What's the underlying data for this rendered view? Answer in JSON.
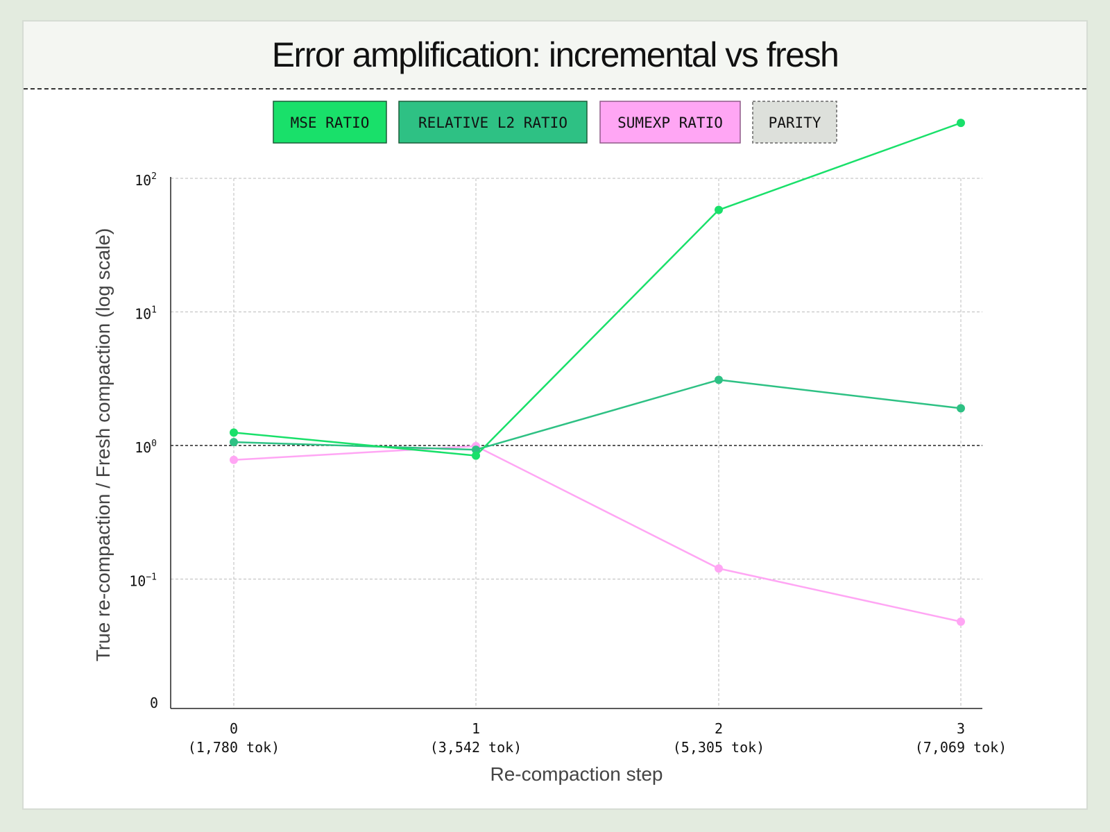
{
  "colors": {
    "mse": "#19e06a",
    "relative_l2": "#2ec184",
    "sumexp": "#ffa6f4",
    "parity_fill": "#dde0db",
    "background": "#e3ebdf"
  },
  "chart_data": {
    "type": "line",
    "title": "Error amplification: incremental vs fresh",
    "xlabel": "Re-compaction step",
    "ylabel": "True re-compaction / Fresh compaction (log scale)",
    "yscale": "log",
    "ylim": [
      0.01,
      100
    ],
    "grid": true,
    "legend_placement": "top-center",
    "x": [
      0,
      1,
      2,
      3
    ],
    "x_tick_labels": [
      {
        "top": "0",
        "bottom": "(1,780 tok)"
      },
      {
        "top": "1",
        "bottom": "(3,542 tok)"
      },
      {
        "top": "2",
        "bottom": "(5,305 tok)"
      },
      {
        "top": "3",
        "bottom": "(7,069 tok)"
      }
    ],
    "y_ticks": [
      {
        "value": 100,
        "base": "10",
        "exp": "2"
      },
      {
        "value": 10,
        "base": "10",
        "exp": "1"
      },
      {
        "value": 1,
        "base": "10",
        "exp": "0"
      },
      {
        "value": 0.1,
        "base": "10",
        "exp": "−1"
      }
    ],
    "y_zero_label": "0",
    "series": [
      {
        "name": "MSE RATIO",
        "key": "mse",
        "color": "#19e06a",
        "values": [
          1.25,
          0.84,
          58,
          260
        ]
      },
      {
        "name": "RELATIVE L2 RATIO",
        "key": "relative_l2",
        "color": "#2ec184",
        "values": [
          1.06,
          0.93,
          3.1,
          1.9
        ]
      },
      {
        "name": "SUMEXP RATIO",
        "key": "sumexp",
        "color": "#ffa6f4",
        "values": [
          0.78,
          0.99,
          0.12,
          0.048
        ]
      }
    ],
    "reference_line": {
      "name": "PARITY",
      "value": 1
    }
  }
}
